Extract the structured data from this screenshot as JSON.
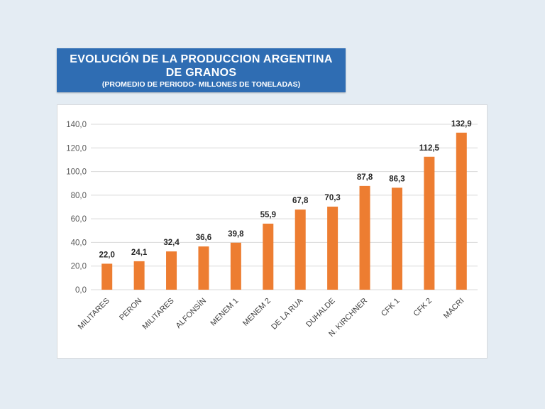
{
  "header": {
    "title_line1": "EVOLUCIÓN DE LA PRODUCCION ARGENTINA",
    "title_line2": "DE GRANOS",
    "subtitle": "(PROMEDIO DE PERIODO- MILLONES DE TONELADAS)"
  },
  "colors": {
    "title_bg": "#2f6db3",
    "bar": "#ed7d31",
    "gridline": "#d9d9d9",
    "background": "#e4ecf3"
  },
  "chart_data": {
    "type": "bar",
    "title": "EVOLUCIÓN DE LA PRODUCCION ARGENTINA DE GRANOS",
    "subtitle": "(PROMEDIO DE PERIODO- MILLONES DE TONELADAS)",
    "categories": [
      "MILITARES",
      "PERON",
      "MILITARES",
      "ALFONSÍN",
      "MENEM 1",
      "MENEM 2",
      "DE LA RUA",
      "DUHALDE",
      "N. KIRCHNER",
      "CFK 1",
      "CFK 2",
      "MACRI"
    ],
    "values": [
      22.0,
      24.1,
      32.4,
      36.6,
      39.8,
      55.9,
      67.8,
      70.3,
      87.8,
      86.3,
      112.5,
      132.9
    ],
    "value_labels": [
      "22,0",
      "24,1",
      "32,4",
      "36,6",
      "39,8",
      "55,9",
      "67,8",
      "70,3",
      "87,8",
      "86,3",
      "112,5",
      "132,9"
    ],
    "yticks": [
      0,
      20,
      40,
      60,
      80,
      100,
      120,
      140
    ],
    "ytick_labels": [
      "0,0",
      "20,0",
      "40,0",
      "60,0",
      "80,0",
      "100,0",
      "120,0",
      "140,0"
    ],
    "ylim": [
      0,
      140
    ],
    "grid": true,
    "legend": false
  }
}
